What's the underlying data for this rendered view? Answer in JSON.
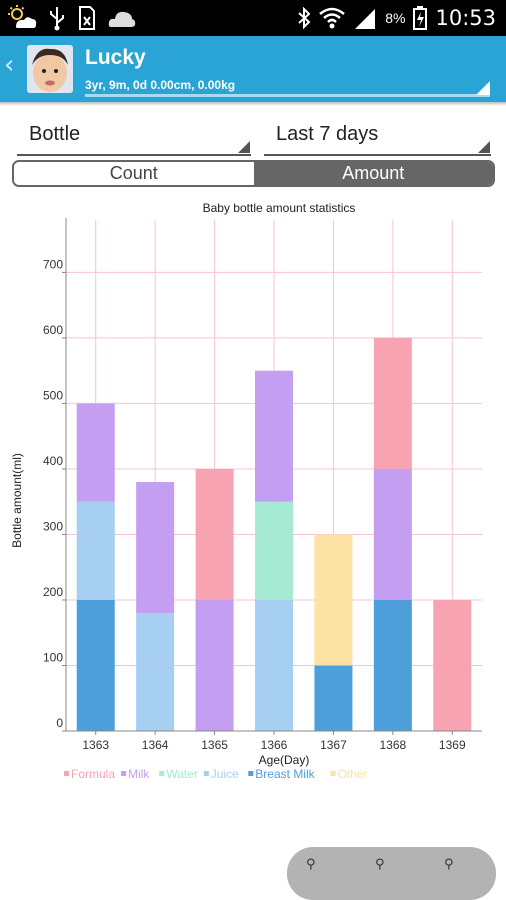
{
  "status_bar": {
    "battery_percent": "8%",
    "time": "10:53",
    "icons": [
      "weather-icon",
      "usb-icon",
      "sd-card-icon",
      "cloud-icon",
      "bluetooth-icon",
      "wifi-icon",
      "signal-icon",
      "battery-icon"
    ]
  },
  "header": {
    "child_name": "Lucky",
    "stats": "3yr, 9m, 0d 0.00cm, 0.00kg",
    "back_icon": "chevron-left-icon"
  },
  "filters": {
    "type_value": "Bottle",
    "period_value": "Last 7 days"
  },
  "toggle": {
    "count_label": "Count",
    "amount_label": "Amount",
    "selected": "Amount"
  },
  "chart_data": {
    "type": "bar",
    "stacked": true,
    "title": "Baby bottle amount statistics",
    "xlabel": "Age(Day)",
    "ylabel": "Bottle amount(ml)",
    "ylim": [
      0,
      780
    ],
    "yticks": [
      0,
      100,
      200,
      300,
      400,
      500,
      600,
      700
    ],
    "categories": [
      "1363",
      "1364",
      "1365",
      "1366",
      "1367",
      "1368",
      "1369"
    ],
    "series": [
      {
        "name": "Breast Milk",
        "color": "#4d9fd9",
        "values": [
          200,
          0,
          0,
          0,
          100,
          200,
          0
        ]
      },
      {
        "name": "Juice",
        "color": "#a6cff2",
        "values": [
          150,
          180,
          0,
          200,
          0,
          0,
          0
        ]
      },
      {
        "name": "Water",
        "color": "#a6ead3",
        "values": [
          0,
          0,
          0,
          150,
          0,
          0,
          0
        ]
      },
      {
        "name": "Milk",
        "color": "#c49ef0",
        "values": [
          150,
          200,
          200,
          200,
          0,
          200,
          0
        ]
      },
      {
        "name": "Formula",
        "color": "#f8a3b2",
        "values": [
          0,
          0,
          200,
          0,
          0,
          200,
          200
        ]
      },
      {
        "name": "Other",
        "color": "#fde3a3",
        "values": [
          0,
          0,
          0,
          0,
          200,
          0,
          0
        ]
      }
    ],
    "legend": [
      "Formula",
      "Milk",
      "Water",
      "Juice",
      "Breast Milk",
      "Other"
    ],
    "legend_placement": "bottom",
    "grid": true,
    "grid_color": "#f6c4d0"
  },
  "zoom": {
    "icons": [
      "zoom-in-icon",
      "zoom-out-icon",
      "zoom-reset-icon"
    ]
  }
}
